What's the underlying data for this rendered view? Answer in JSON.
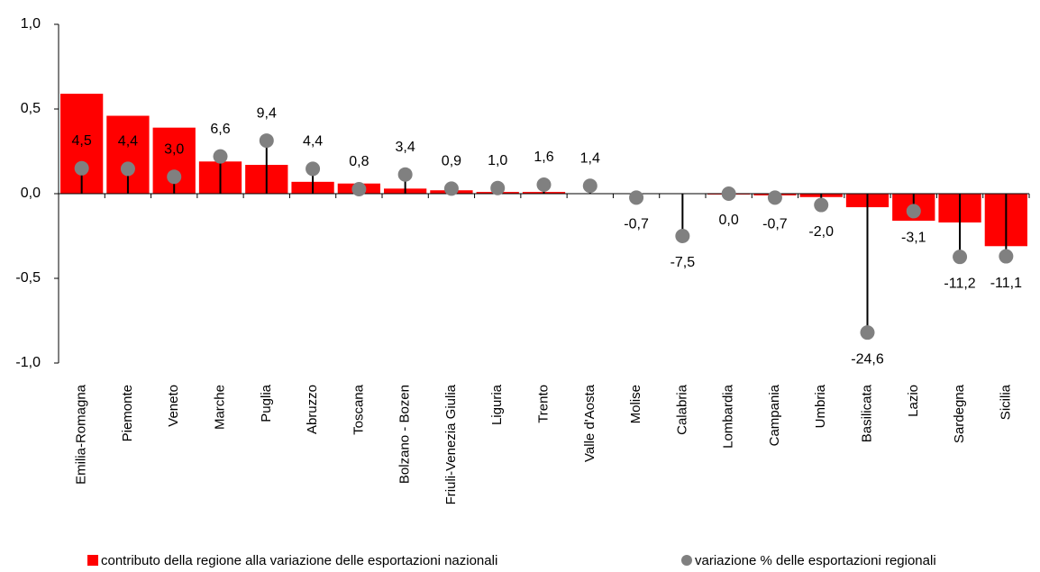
{
  "chart_data": {
    "type": "bar",
    "categories": [
      "Emilia-Romagna",
      "Piemonte",
      "Veneto",
      "Marche",
      "Puglia",
      "Abruzzo",
      "Toscana",
      "Bolzano - Bozen",
      "Friuli-Venezia Giulia",
      "Liguria",
      "Trento",
      "Valle d'Aosta",
      "Molise",
      "Calabria",
      "Lombardia",
      "Campania",
      "Umbria",
      "Basilicata",
      "Lazio",
      "Sardegna",
      "Sicilia"
    ],
    "series": [
      {
        "name": "contributo della regione alla variazione delle esportazioni nazionali",
        "color": "#ff0000",
        "type": "bar",
        "values": [
          0.59,
          0.46,
          0.39,
          0.19,
          0.17,
          0.07,
          0.06,
          0.03,
          0.02,
          0.01,
          0.01,
          0.0,
          0.0,
          0.0,
          -0.005,
          -0.01,
          -0.02,
          -0.08,
          -0.16,
          -0.17,
          -0.31
        ]
      },
      {
        "name": "variazione % delle esportazioni regionali",
        "color": "#808080",
        "type": "dot",
        "axis": "y2",
        "values": [
          4.5,
          4.4,
          3.0,
          6.6,
          9.4,
          4.4,
          0.8,
          3.4,
          0.9,
          1.0,
          1.6,
          1.4,
          -0.7,
          -7.5,
          0.0,
          -0.7,
          -2.0,
          -24.6,
          -3.1,
          -11.2,
          -11.1
        ],
        "value_labels": [
          "4,5",
          "4,4",
          "3,0",
          "6,6",
          "9,4",
          "4,4",
          "0,8",
          "3,4",
          "0,9",
          "1,0",
          "1,6",
          "1,4",
          "-0,7",
          "-7,5",
          "0,0",
          "-0,7",
          "-2,0",
          "-24,6",
          "-3,1",
          "-11,2",
          "-11,1"
        ]
      }
    ],
    "ylim": [
      -1.0,
      1.0
    ],
    "yticks": [
      {
        "value": 1.0,
        "label": "1,0"
      },
      {
        "value": 0.5,
        "label": "0,5"
      },
      {
        "value": 0.0,
        "label": "0,0"
      },
      {
        "value": -0.5,
        "label": "-0,5"
      },
      {
        "value": -1.0,
        "label": "-1,0"
      }
    ],
    "y2lim": [
      -30,
      30
    ],
    "legend": "bottom"
  }
}
